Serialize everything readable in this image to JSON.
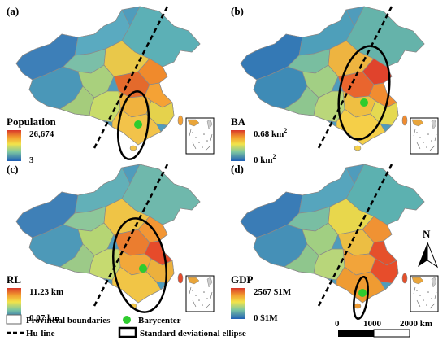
{
  "panels": [
    {
      "letter": "(a)",
      "legend_title": "Population",
      "max_label": "26,674",
      "min_label": "3"
    },
    {
      "letter": "(b)",
      "legend_title": "BA",
      "max_label": "0.68  km",
      "max_sup": "2",
      "min_label": "0  km",
      "min_sup": "2"
    },
    {
      "letter": "(c)",
      "legend_title": "RL",
      "max_label": "11.23 km",
      "min_label": "0.07 km"
    },
    {
      "letter": "(d)",
      "legend_title": "GDP",
      "max_label": "2567 $1M",
      "min_label": "0 $1M"
    }
  ],
  "legend": {
    "provincial": "Provincial boundaries",
    "huline": "Hu-line",
    "barycenter": "Barycenter",
    "ellipse": "Standard deviational ellipse"
  },
  "north": "N",
  "scale": {
    "t0": "0",
    "t1": "1000",
    "t2": "2000 km"
  },
  "colors": {
    "ramp": [
      "#1f5fb5",
      "#21a3c9",
      "#7ec7a0",
      "#f2e34a",
      "#f29a2e",
      "#d9362a"
    ],
    "barycenter": "#2ecc2e",
    "province_fill_west": "#3f8fb6"
  }
}
